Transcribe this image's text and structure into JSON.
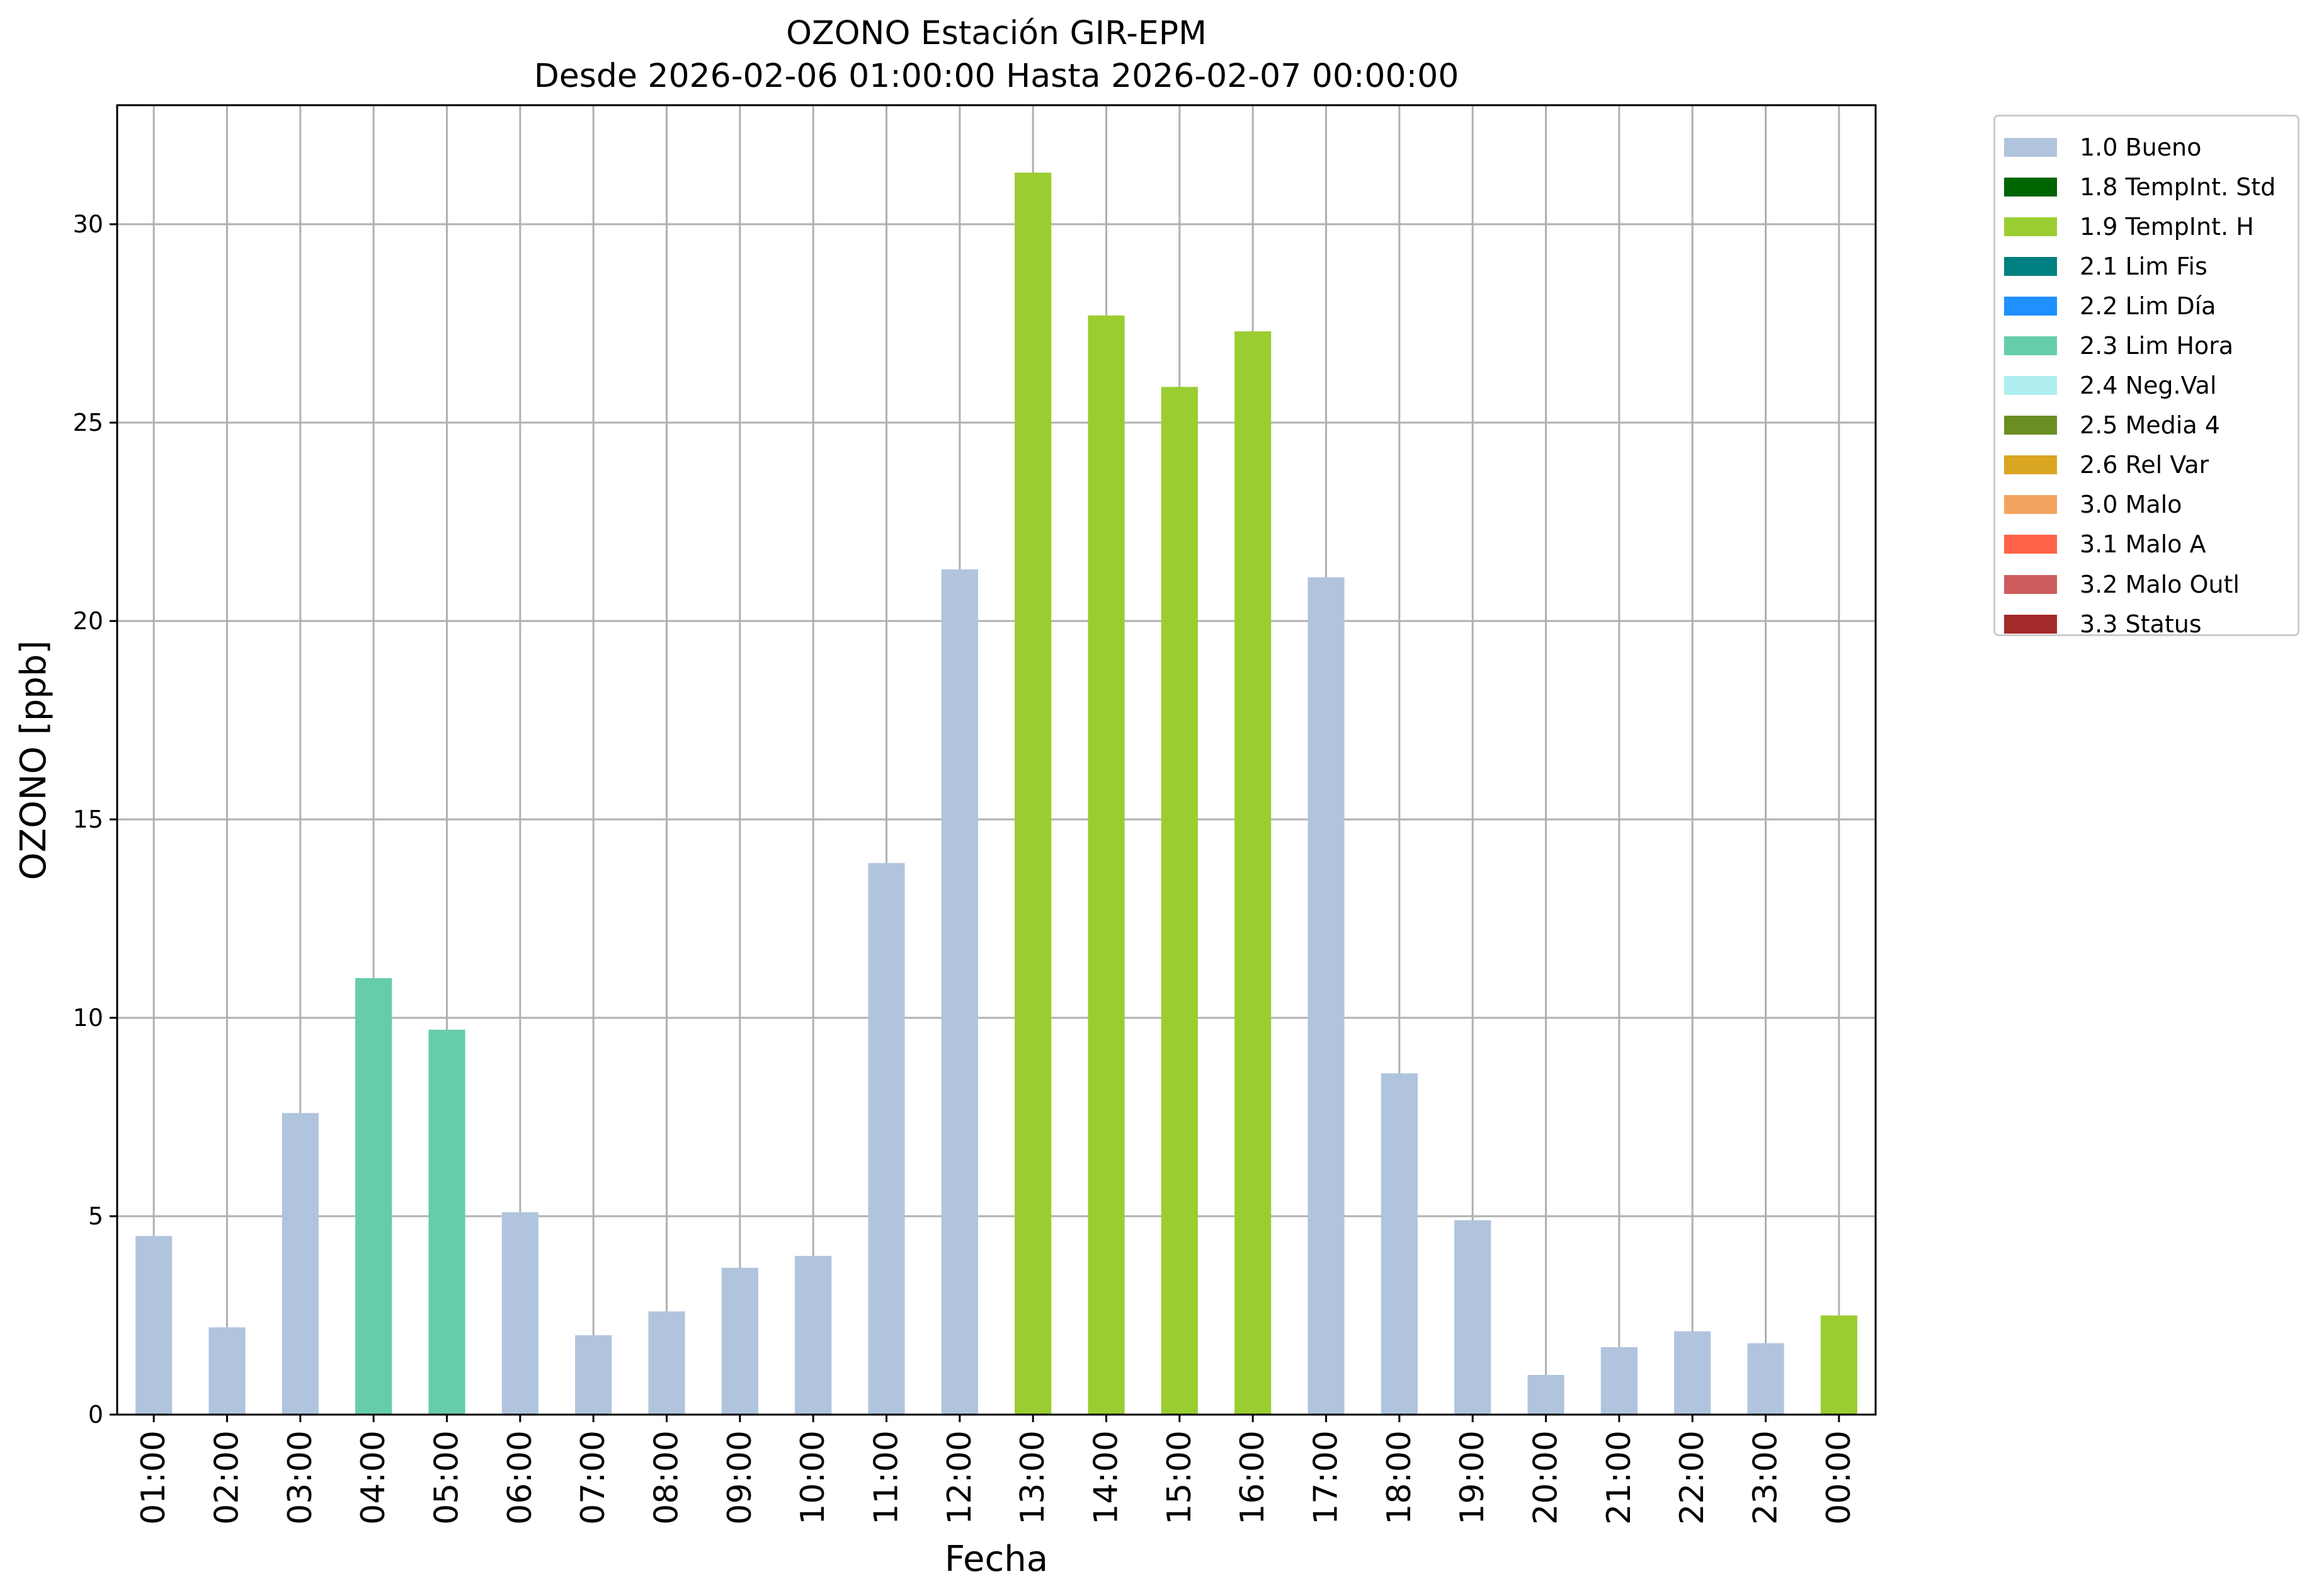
{
  "chart_data": {
    "type": "bar",
    "title": "OZONO Estación GIR-EPM",
    "subtitle": "Desde 2026-02-06 01:00:00 Hasta 2026-02-07 00:00:00",
    "xlabel": "Fecha",
    "ylabel": "OZONO [ppb]",
    "ylim": [
      0,
      33
    ],
    "yticks": [
      0,
      5,
      10,
      15,
      20,
      25,
      30
    ],
    "grid": true,
    "legend_position": "outside-top-right",
    "categories": [
      "01:00",
      "02:00",
      "03:00",
      "04:00",
      "05:00",
      "06:00",
      "07:00",
      "08:00",
      "09:00",
      "10:00",
      "11:00",
      "12:00",
      "13:00",
      "14:00",
      "15:00",
      "16:00",
      "17:00",
      "18:00",
      "19:00",
      "20:00",
      "21:00",
      "22:00",
      "23:00",
      "00:00"
    ],
    "values": [
      4.5,
      2.2,
      7.6,
      11.0,
      9.7,
      5.1,
      2.0,
      2.6,
      3.7,
      4.0,
      13.9,
      21.3,
      31.3,
      27.7,
      25.9,
      27.3,
      21.1,
      8.6,
      4.9,
      1.0,
      1.7,
      2.1,
      1.8,
      2.5
    ],
    "flags": [
      "1.0 Bueno",
      "1.0 Bueno",
      "1.0 Bueno",
      "2.3 Lim Hora",
      "2.3 Lim Hora",
      "1.0 Bueno",
      "1.0 Bueno",
      "1.0 Bueno",
      "1.0 Bueno",
      "1.0 Bueno",
      "1.0 Bueno",
      "1.0 Bueno",
      "1.9 TempInt. H",
      "1.9 TempInt. H",
      "1.9 TempInt. H",
      "1.9 TempInt. H",
      "1.0 Bueno",
      "1.0 Bueno",
      "1.0 Bueno",
      "1.0 Bueno",
      "1.0 Bueno",
      "1.0 Bueno",
      "1.0 Bueno",
      "1.9 TempInt. H"
    ],
    "legend": [
      {
        "label": "1.0 Bueno",
        "color": "#b0c4de"
      },
      {
        "label": "1.8 TempInt. Std",
        "color": "#006400"
      },
      {
        "label": "1.9 TempInt. H",
        "color": "#9acd32"
      },
      {
        "label": "2.1 Lim Fis",
        "color": "#008080"
      },
      {
        "label": "2.2 Lim Día",
        "color": "#1e90ff"
      },
      {
        "label": "2.3 Lim Hora",
        "color": "#66cdaa"
      },
      {
        "label": "2.4 Neg.Val",
        "color": "#afeeee"
      },
      {
        "label": "2.5 Media 4",
        "color": "#6b8e23"
      },
      {
        "label": "2.6 Rel Var",
        "color": "#daa520"
      },
      {
        "label": "3.0 Malo",
        "color": "#f4a460"
      },
      {
        "label": "3.1 Malo A",
        "color": "#ff6347"
      },
      {
        "label": "3.2 Malo Outl",
        "color": "#cd5c5c"
      },
      {
        "label": "3.3 Status",
        "color": "#a52a2a"
      }
    ]
  }
}
